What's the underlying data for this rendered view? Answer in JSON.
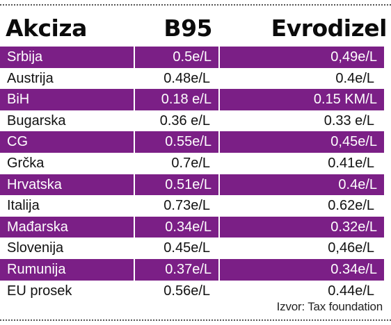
{
  "header": {
    "col1": "Akciza",
    "col2": "B95",
    "col3": "Evrodizel"
  },
  "colors": {
    "row_highlight": "#7b1f86",
    "text": "#111111"
  },
  "rows": [
    {
      "country": "Srbija",
      "b95": "0.5e/L",
      "diesel": "0,49e/L",
      "shaded": true
    },
    {
      "country": "Austrija",
      "b95": "0.48e/L",
      "diesel": "0.4e/L",
      "shaded": false
    },
    {
      "country": "BiH",
      "b95": "0.18 e/L",
      "diesel": "0.15 KM/L",
      "shaded": true
    },
    {
      "country": "Bugarska",
      "b95": "0.36 e/L",
      "diesel": "0.33 e/L",
      "shaded": false
    },
    {
      "country": "CG",
      "b95": "0.55e/L",
      "diesel": "0,45e/L",
      "shaded": true
    },
    {
      "country": "Grčka",
      "b95": "0.7e/L",
      "diesel": "0.41e/L",
      "shaded": false
    },
    {
      "country": "Hrvatska",
      "b95": "0.51e/L",
      "diesel": "0.4e/L",
      "shaded": true
    },
    {
      "country": "Italija",
      "b95": "0.73e/L",
      "diesel": "0.62e/L",
      "shaded": false
    },
    {
      "country": "Mađarska",
      "b95": "0.34e/L",
      "diesel": "0.32e/L",
      "shaded": true
    },
    {
      "country": "Slovenija",
      "b95": "0.45e/L",
      "diesel": "0,46e/L",
      "shaded": false
    },
    {
      "country": "Rumunija",
      "b95": "0.37e/L",
      "diesel": "0.34e/L",
      "shaded": true
    },
    {
      "country": "EU prosek",
      "b95": "0.56e/L",
      "diesel": "0.44e/L",
      "shaded": false
    }
  ],
  "source": "Izvor: Tax foundation"
}
